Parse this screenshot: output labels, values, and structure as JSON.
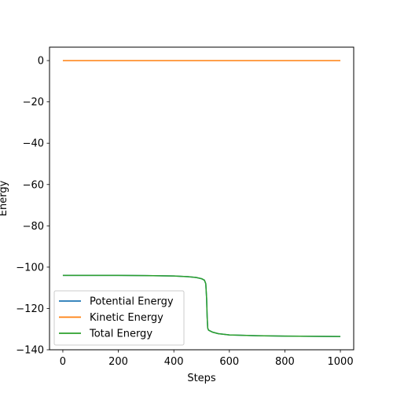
{
  "chart_data": {
    "type": "line",
    "xlabel": "Steps",
    "ylabel": "Energy",
    "xlim": [
      -48,
      1048
    ],
    "ylim": [
      -140,
      6.5
    ],
    "x_ticks": [
      0,
      200,
      400,
      600,
      800,
      1000
    ],
    "y_ticks": [
      0,
      -20,
      -40,
      -60,
      -80,
      -100,
      -120,
      -140
    ],
    "x_tick_labels": [
      "0",
      "200",
      "400",
      "600",
      "800",
      "1000"
    ],
    "y_tick_labels": [
      "0",
      "−20",
      "−40",
      "−60",
      "−80",
      "−100",
      "−120",
      "−140"
    ],
    "grid": false,
    "legend_position": "lower left",
    "series": [
      {
        "name": "Potential Energy",
        "color": "#1f77b4",
        "x": [
          0,
          100,
          200,
          300,
          400,
          450,
          480,
          500,
          510,
          515,
          518,
          520,
          522,
          525,
          540,
          560,
          600,
          700,
          800,
          900,
          1000
        ],
        "y": [
          -104,
          -104,
          -104,
          -104.1,
          -104.3,
          -104.6,
          -105.0,
          -105.6,
          -106.3,
          -108.0,
          -115.0,
          -124.0,
          -129.5,
          -130.5,
          -131.5,
          -132.2,
          -132.8,
          -133.2,
          -133.4,
          -133.5,
          -133.6
        ]
      },
      {
        "name": "Kinetic Energy",
        "color": "#ff7f0e",
        "x": [
          0,
          1000
        ],
        "y": [
          0,
          0
        ]
      },
      {
        "name": "Total Energy",
        "color": "#2ca02c",
        "x": [
          0,
          100,
          200,
          300,
          400,
          450,
          480,
          500,
          510,
          515,
          518,
          520,
          522,
          525,
          540,
          560,
          600,
          700,
          800,
          900,
          1000
        ],
        "y": [
          -104,
          -104,
          -104,
          -104.1,
          -104.3,
          -104.6,
          -105.0,
          -105.6,
          -106.3,
          -108.0,
          -115.0,
          -124.0,
          -129.5,
          -130.5,
          -131.5,
          -132.2,
          -132.8,
          -133.2,
          -133.4,
          -133.5,
          -133.6
        ]
      }
    ]
  }
}
